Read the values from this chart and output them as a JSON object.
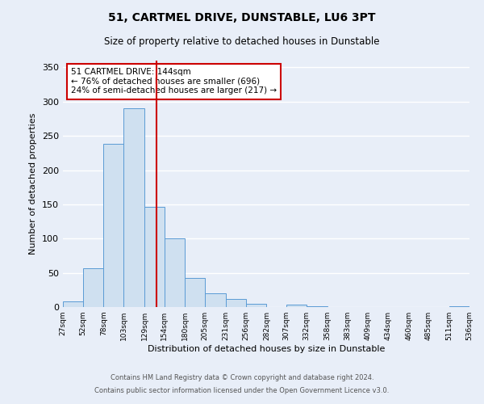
{
  "title": "51, CARTMEL DRIVE, DUNSTABLE, LU6 3PT",
  "subtitle": "Size of property relative to detached houses in Dunstable",
  "xlabel": "Distribution of detached houses by size in Dunstable",
  "ylabel": "Number of detached properties",
  "bin_edges": [
    27,
    52,
    78,
    103,
    129,
    154,
    180,
    205,
    231,
    256,
    282,
    307,
    332,
    358,
    383,
    409,
    434,
    460,
    485,
    511,
    536
  ],
  "bar_heights": [
    8,
    57,
    238,
    290,
    146,
    100,
    42,
    20,
    12,
    5,
    0,
    3,
    1,
    0,
    0,
    0,
    0,
    0,
    0,
    1
  ],
  "bar_color": "#cfe0f0",
  "bar_edgecolor": "#5b9bd5",
  "vline_x": 144,
  "vline_color": "#cc0000",
  "ylim": [
    0,
    360
  ],
  "yticks": [
    0,
    50,
    100,
    150,
    200,
    250,
    300,
    350
  ],
  "annotation_title": "51 CARTMEL DRIVE: 144sqm",
  "annotation_line1": "← 76% of detached houses are smaller (696)",
  "annotation_line2": "24% of semi-detached houses are larger (217) →",
  "annotation_box_color": "#cc0000",
  "footer_line1": "Contains HM Land Registry data © Crown copyright and database right 2024.",
  "footer_line2": "Contains public sector information licensed under the Open Government Licence v3.0.",
  "background_color": "#e8eef8",
  "plot_background": "#e8eef8",
  "grid_color": "#ffffff"
}
